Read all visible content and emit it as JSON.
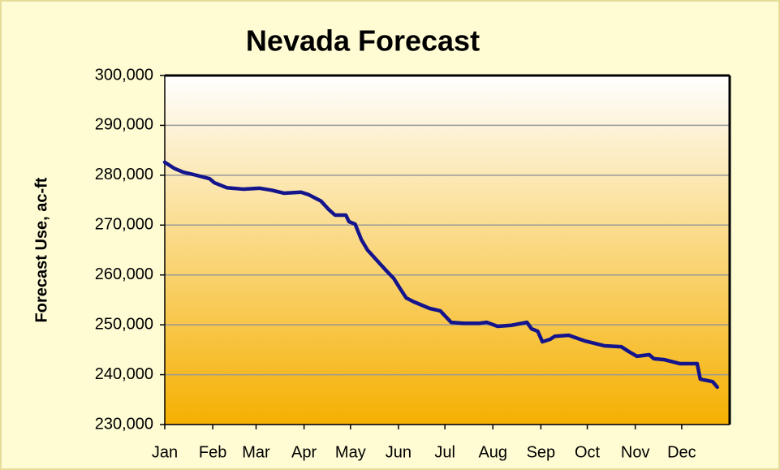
{
  "chart_data": {
    "type": "line",
    "title": "Nevada Forecast",
    "y_label": "Forecast Use, ac-ft",
    "x": [
      0,
      6,
      12,
      19,
      29,
      32,
      40,
      51,
      61,
      69,
      77,
      88,
      93,
      101,
      106,
      110,
      117,
      119,
      123,
      127,
      131,
      138,
      143,
      148,
      152,
      156,
      161,
      171,
      178,
      185,
      193,
      203,
      208,
      215,
      224,
      234,
      237,
      241,
      244,
      249,
      252,
      261,
      271,
      284,
      295,
      300,
      305,
      313,
      316,
      323,
      333,
      344,
      346,
      354,
      357
    ],
    "series": [
      {
        "name": "Forecast Use",
        "color": "#14148c",
        "values": [
          282600,
          281400,
          280600,
          280100,
          279300,
          278500,
          277500,
          277200,
          277400,
          277000,
          276400,
          276600,
          276100,
          274800,
          273100,
          272000,
          272000,
          270700,
          270200,
          267100,
          265000,
          262600,
          260900,
          259300,
          257300,
          255400,
          254600,
          253300,
          252800,
          250500,
          250300,
          250300,
          250500,
          249700,
          249900,
          250500,
          249200,
          248700,
          246600,
          247100,
          247700,
          247900,
          246800,
          245800,
          245600,
          244600,
          243700,
          244000,
          243200,
          243000,
          242200,
          242200,
          239100,
          238600,
          237500
        ]
      }
    ],
    "xlim": [
      0,
      365
    ],
    "xticks": [
      {
        "value": 0,
        "label": "Jan"
      },
      {
        "value": 31,
        "label": "Feb"
      },
      {
        "value": 59,
        "label": "Mar"
      },
      {
        "value": 90,
        "label": "Apr"
      },
      {
        "value": 120,
        "label": "May"
      },
      {
        "value": 151,
        "label": "Jun"
      },
      {
        "value": 181,
        "label": "Jul"
      },
      {
        "value": 212,
        "label": "Aug"
      },
      {
        "value": 243,
        "label": "Sep"
      },
      {
        "value": 273,
        "label": "Oct"
      },
      {
        "value": 304,
        "label": "Nov"
      },
      {
        "value": 334,
        "label": "Dec"
      }
    ],
    "ylim": [
      230000,
      300000
    ],
    "yticks": [
      {
        "value": 230000,
        "label": "230,000"
      },
      {
        "value": 240000,
        "label": "240,000"
      },
      {
        "value": 250000,
        "label": "250,000"
      },
      {
        "value": 260000,
        "label": "260,000"
      },
      {
        "value": 270000,
        "label": "270,000"
      },
      {
        "value": 280000,
        "label": "280,000"
      },
      {
        "value": 290000,
        "label": "290,000"
      },
      {
        "value": 300000,
        "label": "300,000"
      }
    ],
    "grid": true
  }
}
